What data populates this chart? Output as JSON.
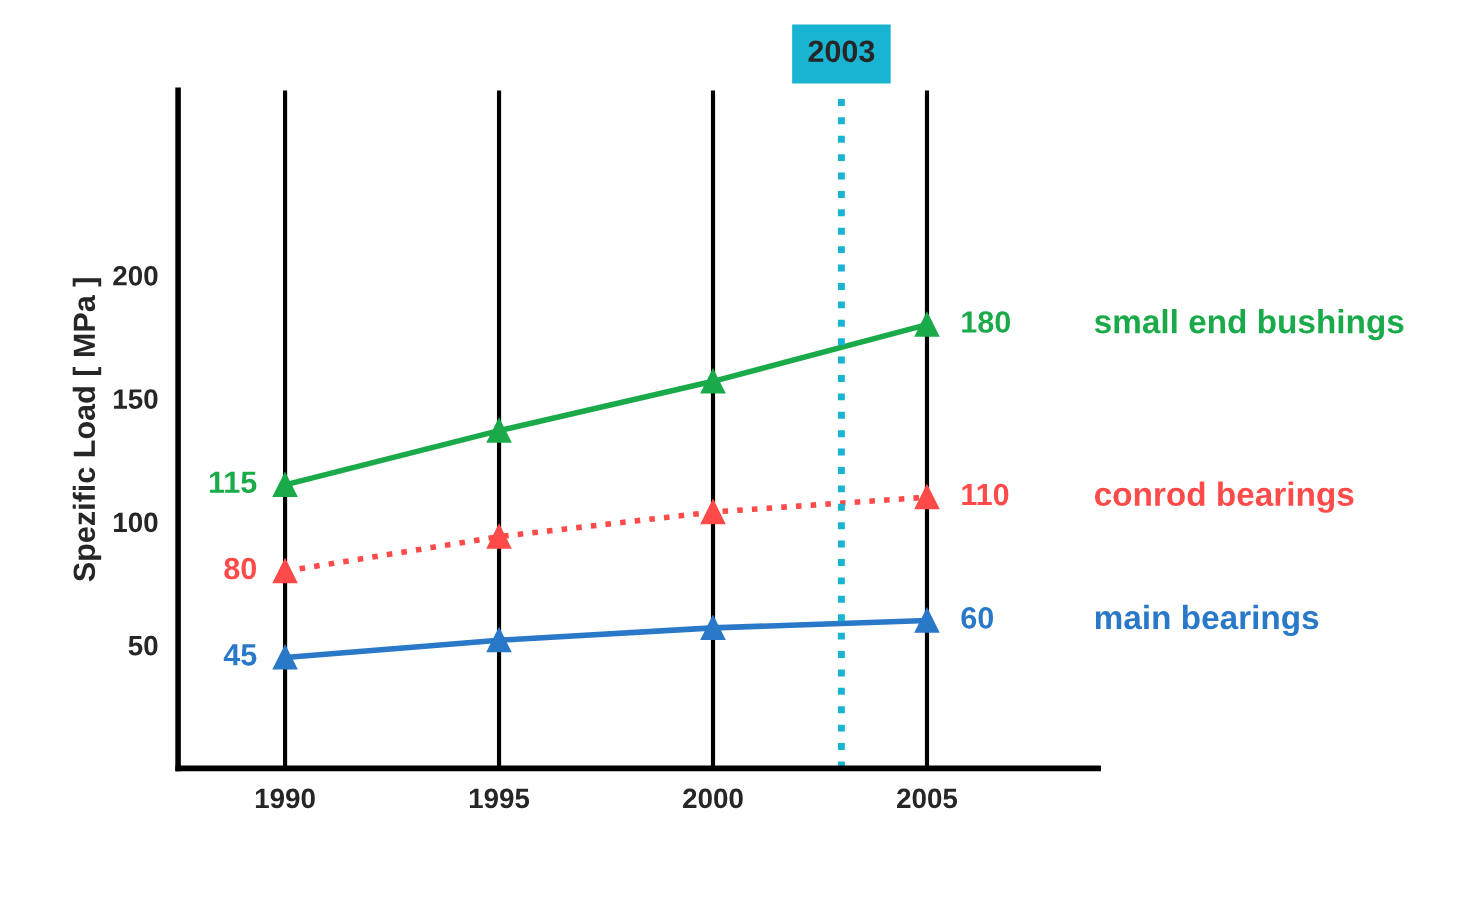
{
  "chart_data": {
    "type": "line",
    "ylabel": "Spezific Load [ MPa ]",
    "x": [
      1990,
      1995,
      2000,
      2005
    ],
    "xlim": [
      1987.5,
      2009
    ],
    "xticks": [
      1990,
      1995,
      2000,
      2005
    ],
    "ylim": [
      0,
      275
    ],
    "yticks": [
      50,
      100,
      150,
      200
    ],
    "grid": "x",
    "marker": "triangle",
    "legend": false,
    "series": [
      {
        "name": "small end bushings",
        "color": "#1aaa4a",
        "values": [
          115,
          137,
          157,
          180
        ],
        "value_labels": [
          "115",
          null,
          null,
          "180"
        ],
        "line_style": "solid"
      },
      {
        "name": "conrod bearings",
        "color": "#ff4a4a",
        "values": [
          80,
          94,
          104,
          110
        ],
        "value_labels": [
          "80",
          null,
          null,
          "110"
        ],
        "line_style": "dotted"
      },
      {
        "name": "main bearings",
        "color": "#2a78c8",
        "values": [
          45,
          52,
          57,
          60
        ],
        "value_labels": [
          "45",
          null,
          null,
          "60"
        ],
        "line_style": "solid"
      }
    ],
    "ref_lines": [
      {
        "axis": "x",
        "value": 2003,
        "label": "2003",
        "color": "#19b4d2",
        "line_style": "dotted"
      }
    ]
  }
}
